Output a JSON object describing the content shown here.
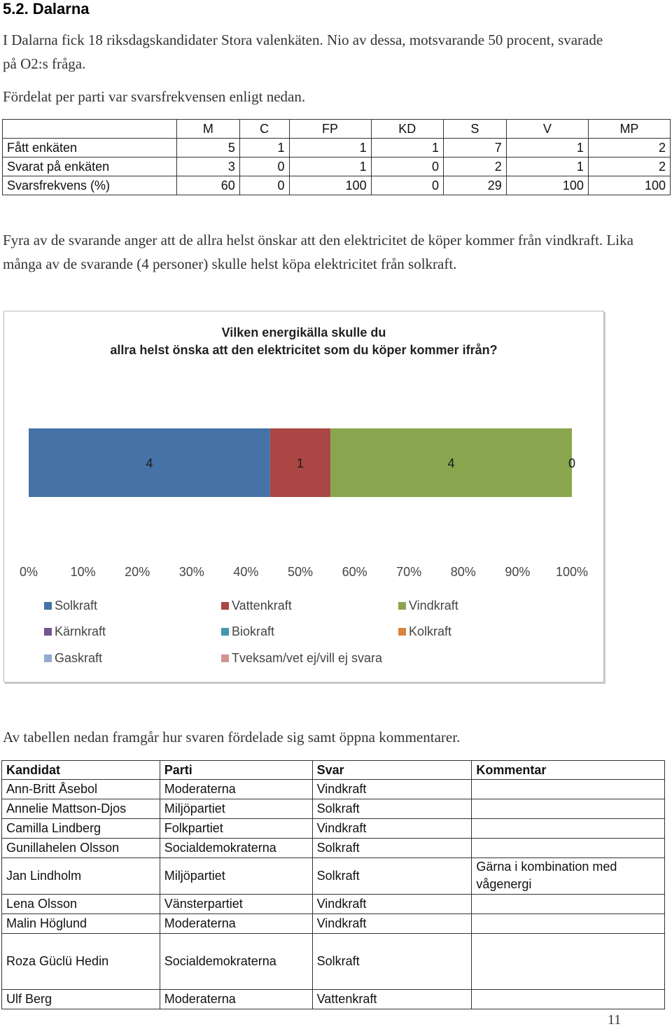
{
  "heading": "5.2.   Dalarna",
  "paragraphs": {
    "p1": "I Dalarna fick 18 riksdagskandidater Stora valenkäten. Nio av dessa, motsvarande 50 procent, svarade på O2:s fråga.",
    "p2": "Fördelat per parti var svarsfrekvensen enligt nedan.",
    "p3": "Fyra av de svarande anger att de allra helst önskar att den elektricitet de köper kommer från vindkraft. Lika många av de svarande (4 personer) skulle helst köpa elektricitet från solkraft.",
    "p4": "Av tabellen nedan framgår hur svaren fördelade sig samt öppna kommentarer."
  },
  "stats_table": {
    "columns": [
      "M",
      "C",
      "FP",
      "KD",
      "S",
      "V",
      "MP"
    ],
    "rows": [
      {
        "label": "Fått enkäten",
        "values": [
          "5",
          "1",
          "1",
          "1",
          "7",
          "1",
          "2"
        ]
      },
      {
        "label": "Svarat på enkäten",
        "values": [
          "3",
          "0",
          "1",
          "0",
          "2",
          "1",
          "2"
        ]
      },
      {
        "label": "Svarsfrekvens (%)",
        "values": [
          "60",
          "0",
          "100",
          "0",
          "29",
          "100",
          "100"
        ]
      }
    ]
  },
  "chart_data": {
    "type": "bar",
    "orientation": "horizontal-stacked-100",
    "title": "Vilken energikälla skulle du allra helst önska att den elektricitet som du köper kommer ifrån?",
    "xlim": [
      0,
      100
    ],
    "x_tick_labels": [
      "0%",
      "10%",
      "20%",
      "30%",
      "40%",
      "50%",
      "60%",
      "70%",
      "80%",
      "90%",
      "100%"
    ],
    "grid": false,
    "legend_position": "bottom",
    "series": [
      {
        "name": "Solkraft",
        "value": 4,
        "color": "#4572A7"
      },
      {
        "name": "Vattenkraft",
        "value": 1,
        "color": "#AA4643"
      },
      {
        "name": "Vindkraft",
        "value": 4,
        "color": "#89A54E"
      },
      {
        "name": "Kärnkraft",
        "value": 0,
        "color": "#71588F"
      },
      {
        "name": "Biokraft",
        "value": 0,
        "color": "#4198AF"
      },
      {
        "name": "Kolkraft",
        "value": 0,
        "color": "#DB843D"
      },
      {
        "name": "Gaskraft",
        "value": 0,
        "color": "#93A9CF"
      },
      {
        "name": "Tveksam/vet ej/vill ej svara",
        "value": 0,
        "color": "#D19392"
      }
    ],
    "data_labels": [
      "4",
      "1",
      "4",
      "0"
    ]
  },
  "response_table": {
    "headers": [
      "Kandidat",
      "Parti",
      "Svar",
      "Kommentar"
    ],
    "rows": [
      [
        "Ann-Britt Åsebol",
        "Moderaterna",
        "Vindkraft",
        ""
      ],
      [
        "Annelie Mattson-Djos",
        "Miljöpartiet",
        "Solkraft",
        ""
      ],
      [
        "Camilla Lindberg",
        "Folkpartiet",
        "Vindkraft",
        ""
      ],
      [
        "Gunillahelen Olsson",
        "Socialdemokraterna",
        "Solkraft",
        ""
      ],
      [
        "Jan Lindholm",
        "Miljöpartiet",
        "Solkraft",
        "Gärna i kombination med vågenergi"
      ],
      [
        "Lena Olsson",
        "Vänsterpartiet",
        "Vindkraft",
        ""
      ],
      [
        "Malin Höglund",
        "Moderaterna",
        "Vindkraft",
        ""
      ],
      [
        "Roza Güclü Hedin",
        "Socialdemokraterna",
        "Solkraft",
        ""
      ],
      [
        "Ulf Berg",
        "Moderaterna",
        "Vattenkraft",
        ""
      ]
    ]
  },
  "page_number": "11"
}
